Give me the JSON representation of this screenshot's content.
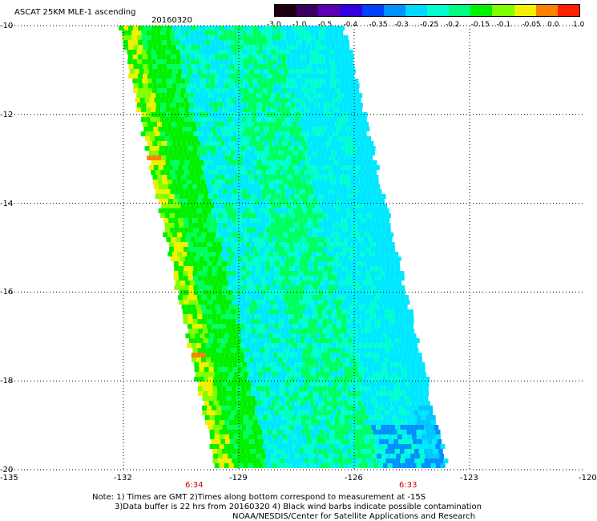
{
  "header": {
    "title": "ASCAT 25KM MLE-1 ascending",
    "date": "20160320"
  },
  "colorbar": {
    "labels": [
      "-3.0",
      "-1.0",
      "-0.5",
      "-0.4",
      "-0.35",
      "-0.3",
      "-0.25",
      "-0.2",
      "-0.15",
      "-0.1",
      "-0.05",
      "0.0",
      "1.0"
    ],
    "colors": [
      "#1a0010",
      "#3a0060",
      "#5a00b0",
      "#3000e0",
      "#0040ff",
      "#0090ff",
      "#00d8ff",
      "#00ffd0",
      "#00ff80",
      "#00f000",
      "#80ff00",
      "#f0f000",
      "#ff8000",
      "#ff2000"
    ]
  },
  "axes": {
    "x_ticks": [
      "-135",
      "-132",
      "-129",
      "-126",
      "-123",
      "-120"
    ],
    "y_ticks": [
      "-10",
      "-12",
      "-14",
      "-16",
      "-18",
      "-20"
    ]
  },
  "pass_times": [
    "6:34",
    "6:33"
  ],
  "notes": {
    "line1": "Note: 1) Times are GMT 2)Times along bottom correspond to measurement at -15S",
    "line2": "3)Data buffer is 22 hrs from 20160320 4) Black wind barbs indicate possible contamination",
    "line3": "NOAA/NESDIS/Center for Satellite Applications and Research"
  }
}
